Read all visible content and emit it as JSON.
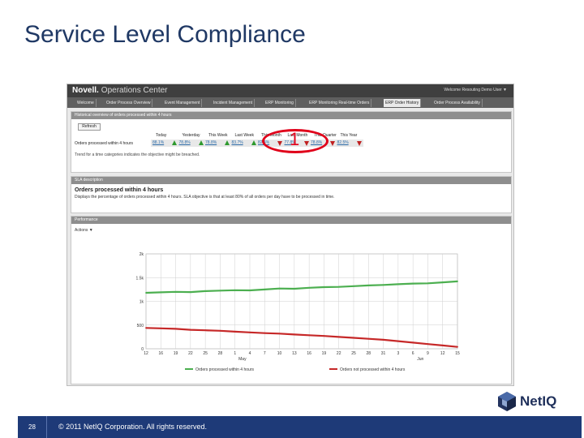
{
  "slide": {
    "title": "Service Level Compliance",
    "page_number": "28",
    "copyright": "© 2011 NetIQ Corporation. All rights reserved.",
    "logo_text": "NetIQ"
  },
  "app": {
    "brand": "Novell.",
    "brand_sub": "Operations Center",
    "welcome": "Welcome Resouting Demo User ▼",
    "tabs": [
      {
        "label": "Welcome",
        "active": false
      },
      {
        "label": "Order Process Overview",
        "active": false
      },
      {
        "label": "Event Management",
        "active": false
      },
      {
        "label": "Incident Management",
        "active": false
      },
      {
        "label": "ERP Monitoring",
        "active": false
      },
      {
        "label": "ERP Monitoring Real-time Orders",
        "active": false
      },
      {
        "label": "ERP Order History",
        "active": true
      },
      {
        "label": "Order Process Availability",
        "active": false
      }
    ]
  },
  "historical": {
    "header": "Historical overview of orders processed within 4 hours",
    "refresh_label": "Refresh",
    "columns": [
      "Today",
      "Yesterday",
      "This Week",
      "Last Week",
      "This Month",
      "Last Month",
      "This Quarter",
      "This Year"
    ],
    "metric_label": "Orders processed within 4 hours",
    "values": [
      {
        "value": "88.1%",
        "trend": "up"
      },
      {
        "value": "78.8%",
        "trend": "up"
      },
      {
        "value": "78.8%",
        "trend": "up"
      },
      {
        "value": "83.7%",
        "trend": "up"
      },
      {
        "value": "82.4%",
        "trend": "down"
      },
      {
        "value": "77.8%",
        "trend": "down"
      },
      {
        "value": "78.8%",
        "trend": "down"
      },
      {
        "value": "82.5%",
        "trend": "down"
      }
    ],
    "note": "Trend for a time categories indicates the objective might be breached.",
    "callout_number": "1"
  },
  "sla": {
    "header": "SLA description",
    "title": "Orders processed within 4 hours",
    "description": "Displays the percentage of orders processed within 4 hours. SLA objective is that at least 80% of all orders per day have to be processed in time."
  },
  "performance": {
    "header": "Performance",
    "actions_label": "Actions ▼"
  },
  "chart_data": {
    "type": "line",
    "title": "",
    "xlabel": "",
    "ylabel": "",
    "ylim": [
      0,
      2000
    ],
    "y_ticks": [
      "0",
      "500",
      "1k",
      "1.5k",
      "2k"
    ],
    "x_ticks": [
      "12",
      "16",
      "19",
      "22",
      "25",
      "28",
      "1",
      "4",
      "7",
      "10",
      "13",
      "16",
      "19",
      "22",
      "25",
      "28",
      "31",
      "3",
      "6",
      "9",
      "12",
      "15"
    ],
    "month_labels": [
      "May",
      "Jun"
    ],
    "legend_placement": "bottom",
    "grid": true,
    "series": [
      {
        "name": "Orders processed within 4 hours",
        "color": "#4caf50",
        "values": [
          1180,
          1190,
          1200,
          1195,
          1215,
          1225,
          1235,
          1230,
          1250,
          1270,
          1265,
          1285,
          1300,
          1305,
          1320,
          1335,
          1345,
          1360,
          1375,
          1380,
          1400,
          1420
        ]
      },
      {
        "name": "Orders not processed within 4 hours",
        "color": "#c62828",
        "values": [
          440,
          430,
          420,
          400,
          390,
          380,
          360,
          345,
          330,
          320,
          300,
          285,
          270,
          250,
          230,
          210,
          190,
          160,
          130,
          100,
          70,
          40
        ]
      }
    ]
  }
}
